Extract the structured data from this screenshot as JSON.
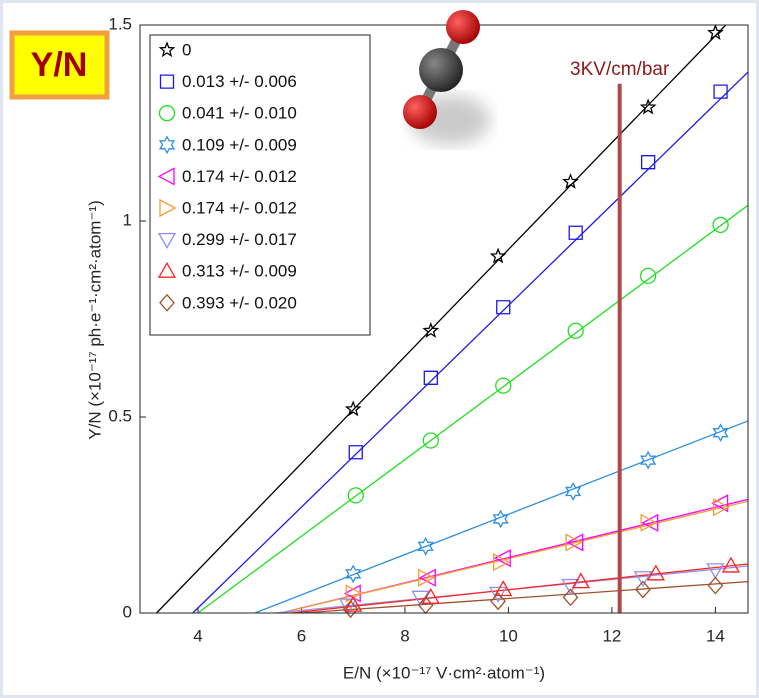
{
  "chart_data": {
    "type": "scatter",
    "xlabel": "E/N (×10⁻¹⁷ V·cm²·atom⁻¹)",
    "ylabel": "Y/N (×10⁻¹⁷ ph·e⁻¹·cm²·atom⁻¹)",
    "badge": "Y/N",
    "annotation": {
      "text": "3KV/cm/bar",
      "x": 12.15,
      "ylim": [
        0,
        1.35
      ],
      "color": "#b04848"
    },
    "xlim": [
      2.88,
      14.63
    ],
    "ylim": [
      0,
      1.5
    ],
    "xticks": [
      4,
      6,
      8,
      10,
      12,
      14
    ],
    "yticks": [
      0,
      0.5,
      1,
      1.5
    ],
    "series": [
      {
        "name": "0",
        "color": "#000000",
        "marker": "star5",
        "x": [
          7.0,
          8.5,
          9.8,
          11.2,
          12.7,
          14.0
        ],
        "values": [
          0.52,
          0.72,
          0.91,
          1.1,
          1.29,
          1.48
        ],
        "fit": {
          "x": [
            3.2,
            14.2
          ],
          "y": [
            0,
            1.5
          ]
        }
      },
      {
        "name": "0.013 +/- 0.006",
        "color": "#1a1ae6",
        "marker": "square",
        "x": [
          7.05,
          8.5,
          9.9,
          11.3,
          12.7,
          14.1
        ],
        "values": [
          0.41,
          0.6,
          0.78,
          0.97,
          1.15,
          1.33
        ],
        "fit": {
          "x": [
            3.9,
            14.63
          ],
          "y": [
            0,
            1.38
          ]
        }
      },
      {
        "name": "0.041 +/- 0.010",
        "color": "#22dd22",
        "marker": "circle",
        "x": [
          7.05,
          8.5,
          9.9,
          11.3,
          12.7,
          14.1
        ],
        "values": [
          0.3,
          0.44,
          0.58,
          0.72,
          0.86,
          0.99
        ],
        "fit": {
          "x": [
            4.0,
            14.63
          ],
          "y": [
            0,
            1.04
          ]
        }
      },
      {
        "name": "0.109 +/- 0.009",
        "color": "#2f8fe0",
        "marker": "star6",
        "x": [
          7.0,
          8.4,
          9.85,
          11.25,
          12.7,
          14.1
        ],
        "values": [
          0.1,
          0.17,
          0.24,
          0.31,
          0.39,
          0.46
        ],
        "fit": {
          "x": [
            5.1,
            14.63
          ],
          "y": [
            0,
            0.49
          ]
        }
      },
      {
        "name": "0.174 +/- 0.012",
        "color": "#ff00ff",
        "marker": "tri-left",
        "x": [
          7.0,
          8.45,
          9.9,
          11.3,
          12.75,
          14.1
        ],
        "values": [
          0.05,
          0.09,
          0.14,
          0.18,
          0.23,
          0.28
        ],
        "fit": {
          "x": [
            5.6,
            14.63
          ],
          "y": [
            0,
            0.29
          ]
        }
      },
      {
        "name": "0.174 +/- 0.012",
        "color": "#f0a030",
        "marker": "tri-right",
        "x": [
          7.0,
          8.4,
          9.85,
          11.25,
          12.7,
          14.1
        ],
        "values": [
          0.05,
          0.09,
          0.13,
          0.18,
          0.23,
          0.27
        ],
        "fit": {
          "x": [
            5.6,
            14.63
          ],
          "y": [
            0,
            0.285
          ]
        }
      },
      {
        "name": "0.299 +/- 0.017",
        "color": "#9090ee",
        "marker": "tri-down",
        "x": [
          6.9,
          8.3,
          9.8,
          11.2,
          12.6,
          14.0
        ],
        "values": [
          0.02,
          0.04,
          0.05,
          0.07,
          0.09,
          0.11
        ],
        "fit": {
          "x": [
            5.5,
            14.63
          ],
          "y": [
            0,
            0.12
          ]
        }
      },
      {
        "name": "0.313 +/- 0.009",
        "color": "#ff2020",
        "marker": "tri-up",
        "x": [
          7.0,
          8.5,
          9.9,
          11.4,
          12.85,
          14.3
        ],
        "values": [
          0.02,
          0.04,
          0.06,
          0.08,
          0.1,
          0.12
        ],
        "fit": {
          "x": [
            5.8,
            14.63
          ],
          "y": [
            0,
            0.125
          ]
        }
      },
      {
        "name": "0.393 +/- 0.020",
        "color": "#a0522d",
        "marker": "diamond",
        "x": [
          6.95,
          8.4,
          9.8,
          11.2,
          12.6,
          14.0
        ],
        "values": [
          0.01,
          0.02,
          0.03,
          0.04,
          0.06,
          0.07
        ],
        "fit": {
          "x": [
            6.0,
            14.63
          ],
          "y": [
            0,
            0.08
          ]
        }
      }
    ]
  }
}
